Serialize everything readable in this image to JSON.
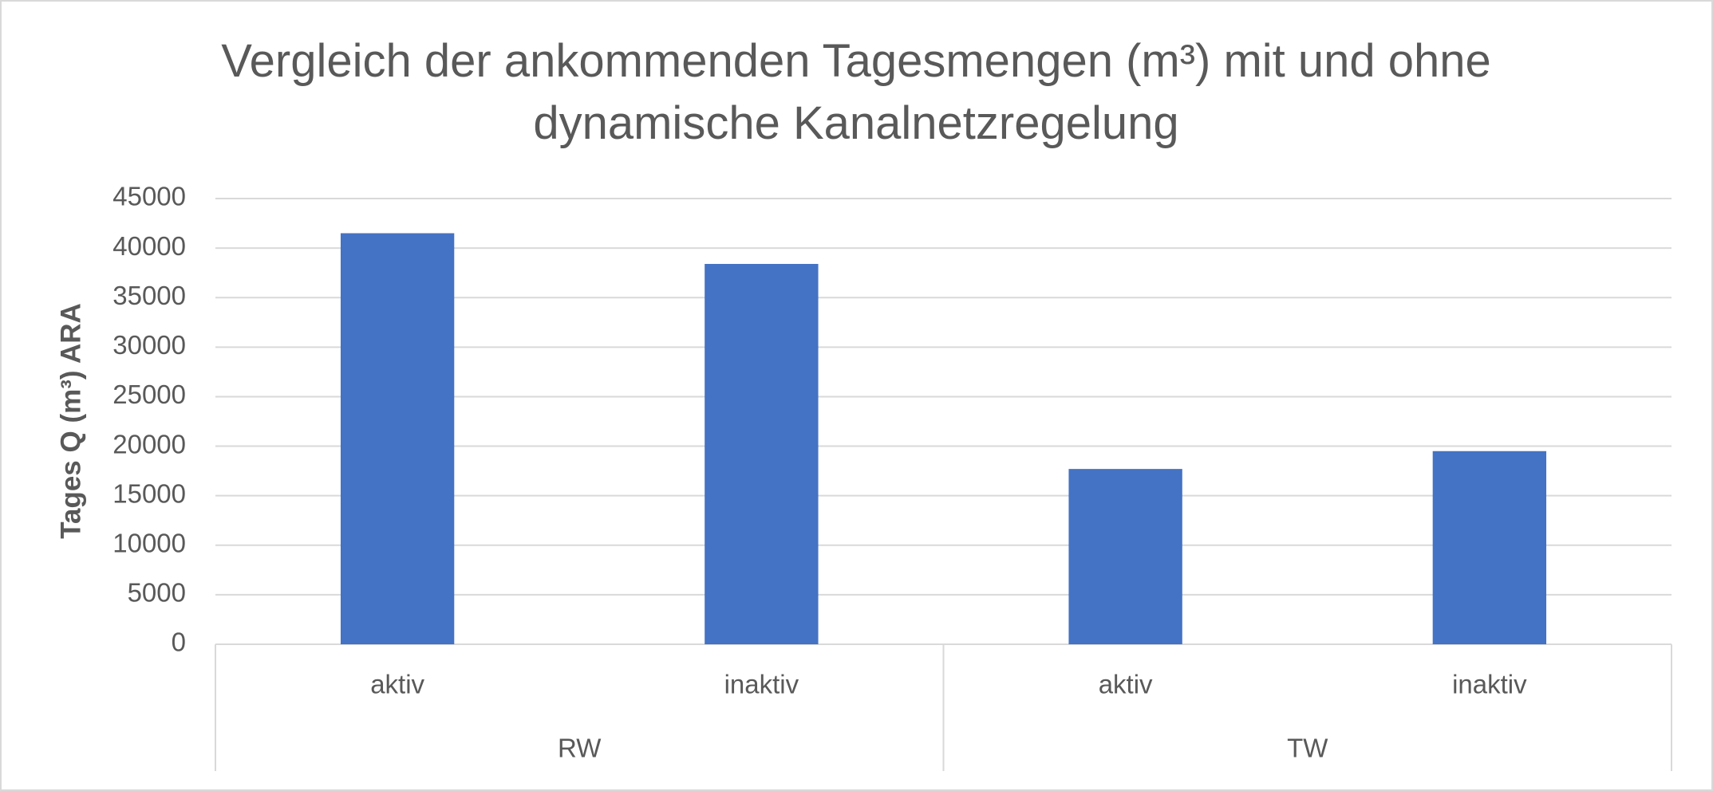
{
  "chart_data": {
    "type": "bar",
    "title": "Vergleich der ankommenden Tagesmengen (m³) mit und ohne dynamische Kanalnetzregelung",
    "y_label": "Tages Q (m³) ARA",
    "categories": [
      "aktiv",
      "inaktiv",
      "aktiv",
      "inaktiv"
    ],
    "category_groups": [
      "RW",
      "TW"
    ],
    "values": [
      41500,
      38400,
      17700,
      19500
    ],
    "color": "#4472c4",
    "ylim": [
      0,
      45000
    ],
    "yticks": [
      0,
      5000,
      10000,
      15000,
      20000,
      25000,
      30000,
      35000,
      40000,
      45000
    ],
    "grid": true
  }
}
